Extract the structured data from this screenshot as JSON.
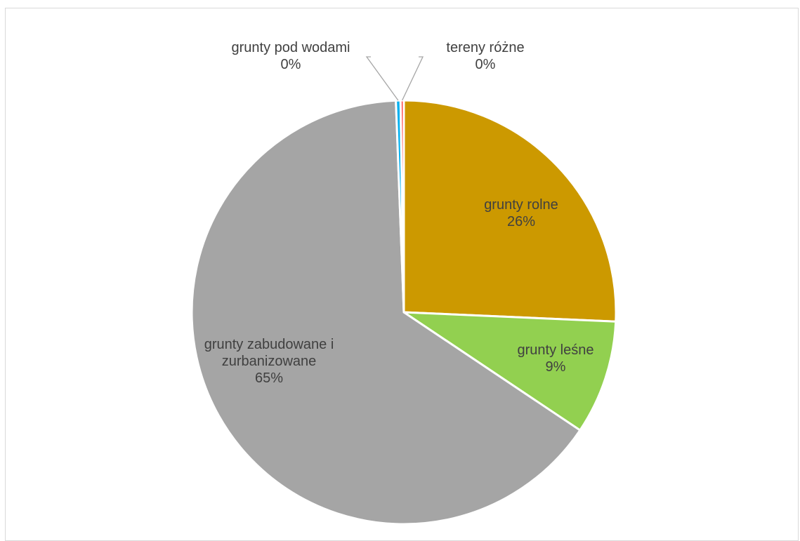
{
  "chart_data": {
    "type": "pie",
    "title": "",
    "colors": {
      "grunty rolne": "#cc9900",
      "grunty leśne": "#92d050",
      "grunty zabudowane i zurbanizowane": "#a5a5a5",
      "grunty pod wodami": "#00b0f0",
      "tereny różne": "#ff5050",
      "border": "#ffffff",
      "leader_line": "#a6a6a6",
      "label_text": "#404040"
    },
    "slices": [
      {
        "label_lines": [
          "grunty rolne"
        ],
        "value": 25.7,
        "percent_label": "26%",
        "label_position": "inside"
      },
      {
        "label_lines": [
          "grunty leśne"
        ],
        "value": 8.7,
        "percent_label": "9%",
        "label_position": "inside"
      },
      {
        "label_lines": [
          "grunty zabudowane i",
          "zurbanizowane"
        ],
        "value": 65.0,
        "percent_label": "65%",
        "label_position": "inside"
      },
      {
        "label_lines": [
          "grunty pod wodami"
        ],
        "value": 0.35,
        "percent_label": "0%",
        "label_position": "outside-left"
      },
      {
        "label_lines": [
          "tereny różne"
        ],
        "value": 0.25,
        "percent_label": "0%",
        "label_position": "outside-right"
      }
    ]
  }
}
